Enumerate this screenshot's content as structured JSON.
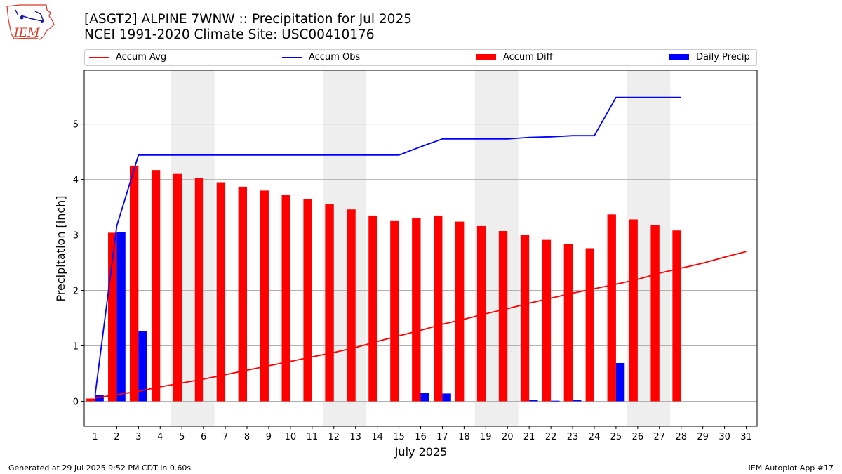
{
  "header": {
    "title_line1": "[ASGT2] ALPINE 7WNW :: Precipitation for Jul 2025",
    "title_line2": "NCEI 1991-2020 Climate Site: USC00410176"
  },
  "logo": {
    "text": "IEM",
    "color": "#d63a2a"
  },
  "footer": {
    "left": "Generated at 29 Jul 2025 9:52 PM CDT in 0.60s",
    "right": "IEM Autoplot App #17"
  },
  "colors": {
    "accum_avg": "#ff0000",
    "accum_obs": "#0000ff",
    "accum_diff": "#ff0000",
    "daily_precip": "#0000ff",
    "weekend_shade": "#eeeeee",
    "grid": "#b0b0b0"
  },
  "legend": [
    {
      "label": "Accum Avg",
      "kind": "line",
      "color": "#ff0000"
    },
    {
      "label": "Accum Obs",
      "kind": "line",
      "color": "#0000ff"
    },
    {
      "label": "Accum Diff",
      "kind": "box",
      "color": "#ff0000"
    },
    {
      "label": "Daily Precip",
      "kind": "box",
      "color": "#0000ff"
    }
  ],
  "chart_data": {
    "type": "bar",
    "xlabel": "July 2025",
    "ylabel": "Precipitation [inch]",
    "xlim": [
      0.5,
      31.5
    ],
    "ylim": [
      -0.45,
      5.97
    ],
    "yticks": [
      0,
      1,
      2,
      3,
      4,
      5
    ],
    "grid": "y",
    "legend_position": "top",
    "x": [
      1,
      2,
      3,
      4,
      5,
      6,
      7,
      8,
      9,
      10,
      11,
      12,
      13,
      14,
      15,
      16,
      17,
      18,
      19,
      20,
      21,
      22,
      23,
      24,
      25,
      26,
      27,
      28,
      29,
      30,
      31
    ],
    "weekend_spans": [
      [
        5,
        6
      ],
      [
        12,
        13
      ],
      [
        19,
        20
      ],
      [
        26,
        27
      ]
    ],
    "series": [
      {
        "name": "Accum Avg",
        "type": "line",
        "x": [
          1,
          2,
          3,
          4,
          5,
          6,
          7,
          8,
          9,
          10,
          11,
          12,
          13,
          14,
          15,
          16,
          17,
          18,
          19,
          20,
          21,
          22,
          23,
          24,
          25,
          26,
          27,
          28,
          29,
          30,
          31
        ],
        "values": [
          0.06,
          0.12,
          0.18,
          0.26,
          0.33,
          0.4,
          0.48,
          0.56,
          0.64,
          0.72,
          0.8,
          0.88,
          0.97,
          1.08,
          1.18,
          1.28,
          1.39,
          1.48,
          1.58,
          1.67,
          1.77,
          1.86,
          1.95,
          2.03,
          2.11,
          2.2,
          2.31,
          2.4,
          2.49,
          2.6,
          2.7
        ]
      },
      {
        "name": "Accum Obs",
        "type": "line",
        "x": [
          1,
          2,
          3,
          4,
          5,
          6,
          7,
          8,
          9,
          10,
          11,
          12,
          13,
          14,
          15,
          16,
          17,
          18,
          19,
          20,
          21,
          22,
          23,
          24,
          25,
          26,
          27,
          28
        ],
        "values": [
          0.11,
          3.16,
          4.44,
          4.44,
          4.44,
          4.44,
          4.44,
          4.44,
          4.44,
          4.44,
          4.44,
          4.44,
          4.44,
          4.44,
          4.44,
          4.59,
          4.73,
          4.73,
          4.73,
          4.73,
          4.76,
          4.77,
          4.79,
          4.79,
          5.48,
          5.48,
          5.48,
          5.48
        ]
      },
      {
        "name": "Accum Diff",
        "type": "bar",
        "x": [
          1,
          2,
          3,
          4,
          5,
          6,
          7,
          8,
          9,
          10,
          11,
          12,
          13,
          14,
          15,
          16,
          17,
          18,
          19,
          20,
          21,
          22,
          23,
          24,
          25,
          26,
          27,
          28
        ],
        "values": [
          0.05,
          3.04,
          4.25,
          4.17,
          4.1,
          4.03,
          3.95,
          3.87,
          3.8,
          3.72,
          3.64,
          3.56,
          3.46,
          3.35,
          3.25,
          3.3,
          3.35,
          3.24,
          3.16,
          3.07,
          3.0,
          2.91,
          2.84,
          2.76,
          3.37,
          3.28,
          3.18,
          3.08
        ]
      },
      {
        "name": "Daily Precip",
        "type": "bar",
        "x": [
          1,
          2,
          3,
          4,
          5,
          6,
          7,
          8,
          9,
          10,
          11,
          12,
          13,
          14,
          15,
          16,
          17,
          18,
          19,
          20,
          21,
          22,
          23,
          24,
          25,
          26,
          27,
          28
        ],
        "values": [
          0.11,
          3.05,
          1.27,
          0,
          0,
          0,
          0,
          0,
          0,
          0,
          0,
          0,
          0,
          0,
          0,
          0.15,
          0.14,
          0,
          0,
          0,
          0.03,
          0.01,
          0.02,
          0,
          0.69,
          0,
          0,
          0
        ]
      }
    ]
  }
}
